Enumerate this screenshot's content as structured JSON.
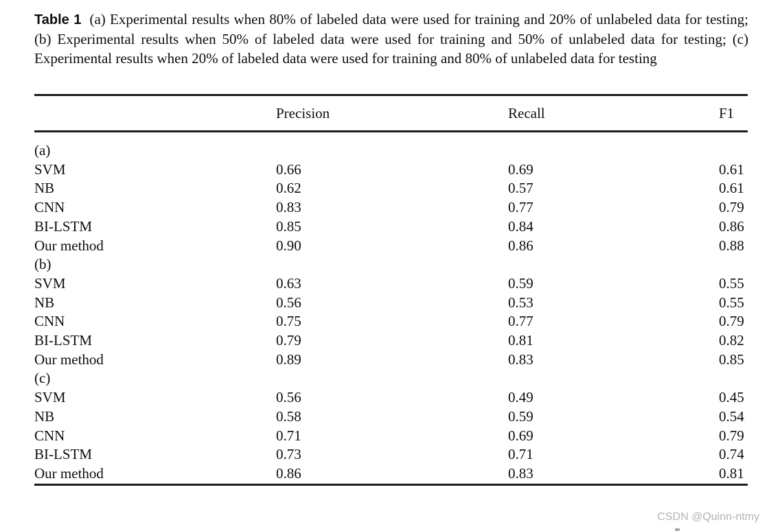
{
  "caption": {
    "label": "Table 1",
    "text": "(a) Experimental results when 80% of labeled data were used for training and 20% of unlabeled data for testing; (b) Experimental results when 50% of labeled data were used for training and 50% of unlabeled data for testing; (c) Experimental results when 20% of labeled data were used for training and 80% of unlabeled data for testing"
  },
  "table": {
    "columns": [
      "",
      "Precision",
      "Recall",
      "F1"
    ],
    "rows": [
      [
        "(a)",
        "",
        "",
        ""
      ],
      [
        "SVM",
        "0.66",
        "0.69",
        "0.61"
      ],
      [
        "NB",
        "0.62",
        "0.57",
        "0.61"
      ],
      [
        "CNN",
        "0.83",
        "0.77",
        "0.79"
      ],
      [
        "BI-LSTM",
        "0.85",
        "0.84",
        "0.86"
      ],
      [
        "Our method",
        "0.90",
        "0.86",
        "0.88"
      ],
      [
        "(b)",
        "",
        "",
        ""
      ],
      [
        "SVM",
        "0.63",
        "0.59",
        "0.55"
      ],
      [
        "NB",
        "0.56",
        "0.53",
        "0.55"
      ],
      [
        "CNN",
        "0.75",
        "0.77",
        "0.79"
      ],
      [
        "BI-LSTM",
        "0.79",
        "0.81",
        "0.82"
      ],
      [
        "Our method",
        "0.89",
        "0.83",
        "0.85"
      ],
      [
        "(c)",
        "",
        "",
        ""
      ],
      [
        "SVM",
        "0.56",
        "0.49",
        "0.45"
      ],
      [
        "NB",
        "0.58",
        "0.59",
        "0.54"
      ],
      [
        "CNN",
        "0.71",
        "0.69",
        "0.79"
      ],
      [
        "BI-LSTM",
        "0.73",
        "0.71",
        "0.74"
      ],
      [
        "Our method",
        "0.86",
        "0.83",
        "0.81"
      ]
    ]
  },
  "watermark": {
    "text": "CSDN @Quinn-ntmy",
    "color": "#b0b3b8"
  },
  "colors": {
    "rule": "#1b1b1b",
    "text": "#0d0d0d",
    "background": "#ffffff"
  }
}
